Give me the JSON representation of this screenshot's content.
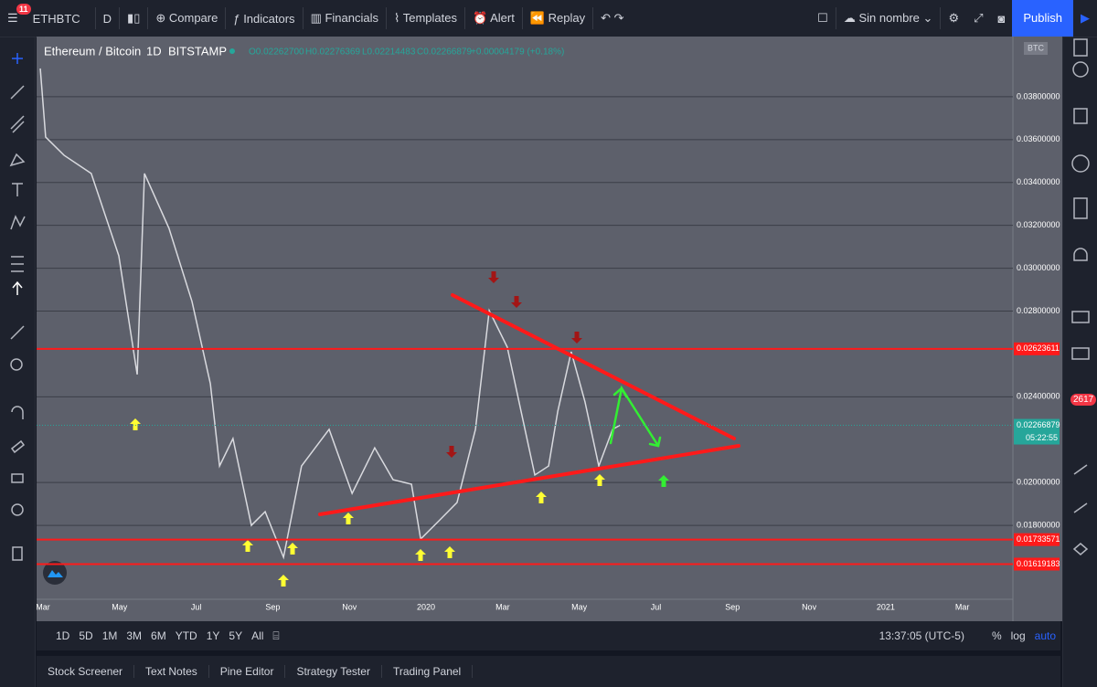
{
  "toolbar": {
    "symbol": "ETHBTC",
    "interval": "D",
    "compare": "Compare",
    "indicators": "Indicators",
    "financials": "Financials",
    "templates": "Templates",
    "alert": "Alert",
    "replay": "Replay",
    "layout_name": "Sin nombre",
    "publish": "Publish",
    "notifications": "11"
  },
  "chart_data": {
    "type": "line",
    "title": "Ethereum / Bitcoin",
    "interval": "1D",
    "exchange": "BITSTAMP",
    "ohlc": [
      "O0.02262700",
      "H0.02276369",
      "L0.02214483",
      "C0.02266879"
    ],
    "change": "+0.00004179 (+0.18%)",
    "currency": "BTC",
    "series": [
      {
        "color": "#d9dadf",
        "x": [
          -0.07,
          0.07,
          0.55,
          1.26,
          1.98,
          2.46,
          2.65,
          3.29,
          3.89,
          4.37,
          4.61,
          4.96,
          5.44,
          5.8,
          6.28,
          6.75,
          7.47,
          8.07,
          8.66,
          9.14,
          9.62,
          9.86,
          10.33,
          10.81,
          11.29,
          11.65,
          12.12,
          12.48,
          12.84,
          13.2,
          13.44,
          13.79,
          14.15,
          14.51,
          14.87,
          15.06
        ],
        "values": [
          0.03932,
          0.03612,
          0.03527,
          0.03442,
          0.03058,
          0.02504,
          0.03442,
          0.03186,
          0.02845,
          0.02461,
          0.02077,
          0.02205,
          0.018,
          0.01864,
          0.01651,
          0.02077,
          0.02248,
          0.01949,
          0.02162,
          0.02013,
          0.01992,
          0.01736,
          0.0182,
          0.01907,
          0.02248,
          0.02802,
          0.02632,
          0.02333,
          0.02035,
          0.02077,
          0.02333,
          0.0261,
          0.02376,
          0.02077,
          0.02248,
          0.02267
        ]
      }
    ],
    "ylim": [
      0.01455,
      0.04081
    ],
    "yticks": [
      {
        "value": 0.038,
        "label": "0.03800000"
      },
      {
        "value": 0.036,
        "label": "0.03600000"
      },
      {
        "value": 0.034,
        "label": "0.03400000"
      },
      {
        "value": 0.032,
        "label": "0.03200000"
      },
      {
        "value": 0.03,
        "label": "0.03000000"
      },
      {
        "value": 0.028,
        "label": "0.02800000"
      },
      {
        "value": 0.024,
        "label": "0.02400000"
      },
      {
        "value": 0.02,
        "label": "0.02000000"
      },
      {
        "value": 0.018,
        "label": "0.01800000"
      }
    ],
    "xlim": [
      -0.167,
      25.32
    ],
    "xticks": [
      {
        "value": 0,
        "label": "Mar"
      },
      {
        "value": 2,
        "label": "May"
      },
      {
        "value": 4,
        "label": "Jul"
      },
      {
        "value": 6,
        "label": "Sep"
      },
      {
        "value": 8,
        "label": "Nov"
      },
      {
        "value": 10,
        "label": "2020"
      },
      {
        "value": 12,
        "label": "Mar"
      },
      {
        "value": 14,
        "label": "May"
      },
      {
        "value": 16,
        "label": "Jul"
      },
      {
        "value": 18,
        "label": "Sep"
      },
      {
        "value": 20,
        "label": "Nov"
      },
      {
        "value": 22,
        "label": "2021"
      },
      {
        "value": 24,
        "label": "Mar"
      }
    ],
    "grid": true,
    "hlines": [
      {
        "value": 0.02623611,
        "color": "#ff1a1a"
      },
      {
        "value": 0.01733571,
        "color": "#ff1a1a"
      },
      {
        "value": 0.01619183,
        "color": "#ff1a1a"
      }
    ],
    "last_price": {
      "value": 0.02266879,
      "color": "#26a69a",
      "countdown": "05:22:55"
    }
  },
  "bottom_bar": {
    "ranges": [
      "1D",
      "5D",
      "1M",
      "3M",
      "6M",
      "YTD",
      "1Y",
      "5Y",
      "All"
    ],
    "clock": "13:37:05 (UTC-5)",
    "percent": "%",
    "log": "log",
    "auto": "auto"
  },
  "tabs": [
    "Stock Screener",
    "Text Notes",
    "Pine Editor",
    "Strategy Tester",
    "Trading Panel"
  ],
  "side_badge": "2617"
}
